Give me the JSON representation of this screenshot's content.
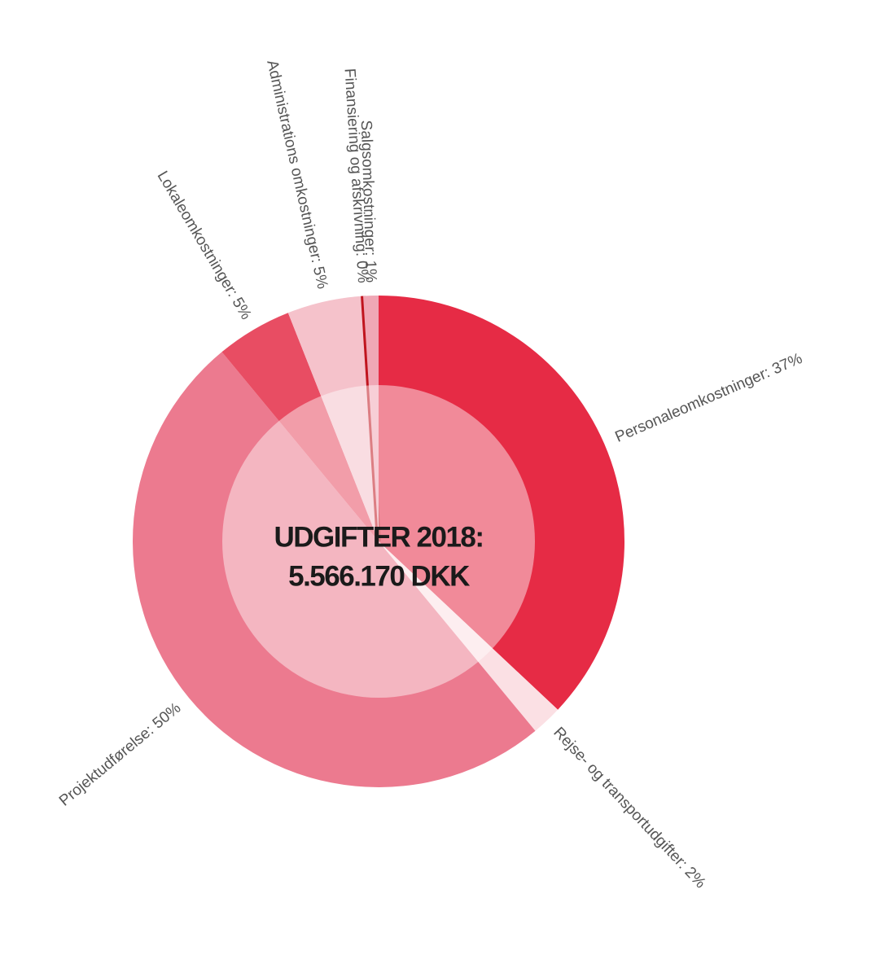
{
  "chart_data": {
    "type": "donut",
    "title": [
      "UDGIFTER 2018:",
      "5.566.170 DKK"
    ],
    "categories": [
      "Personaleomkostninger:",
      "Rejse- og transportudgifter:",
      "Projektudførelse:",
      "Lokaleomkostninger:",
      "Administrations omkostninger:",
      "Finansiering og afskrivning:",
      "Salgsomkostninger:"
    ],
    "values": [
      37,
      2,
      50,
      5,
      5,
      0,
      1
    ],
    "value_labels": [
      "37%",
      "2%",
      "50%",
      "5%",
      "5%",
      "0%",
      "1%"
    ],
    "colors": [
      "#e62b45",
      "#fbe0e4",
      "#ec7a8f",
      "#e84d63",
      "#f5c2cb",
      "#c0141e",
      "#f0a7b5"
    ]
  }
}
